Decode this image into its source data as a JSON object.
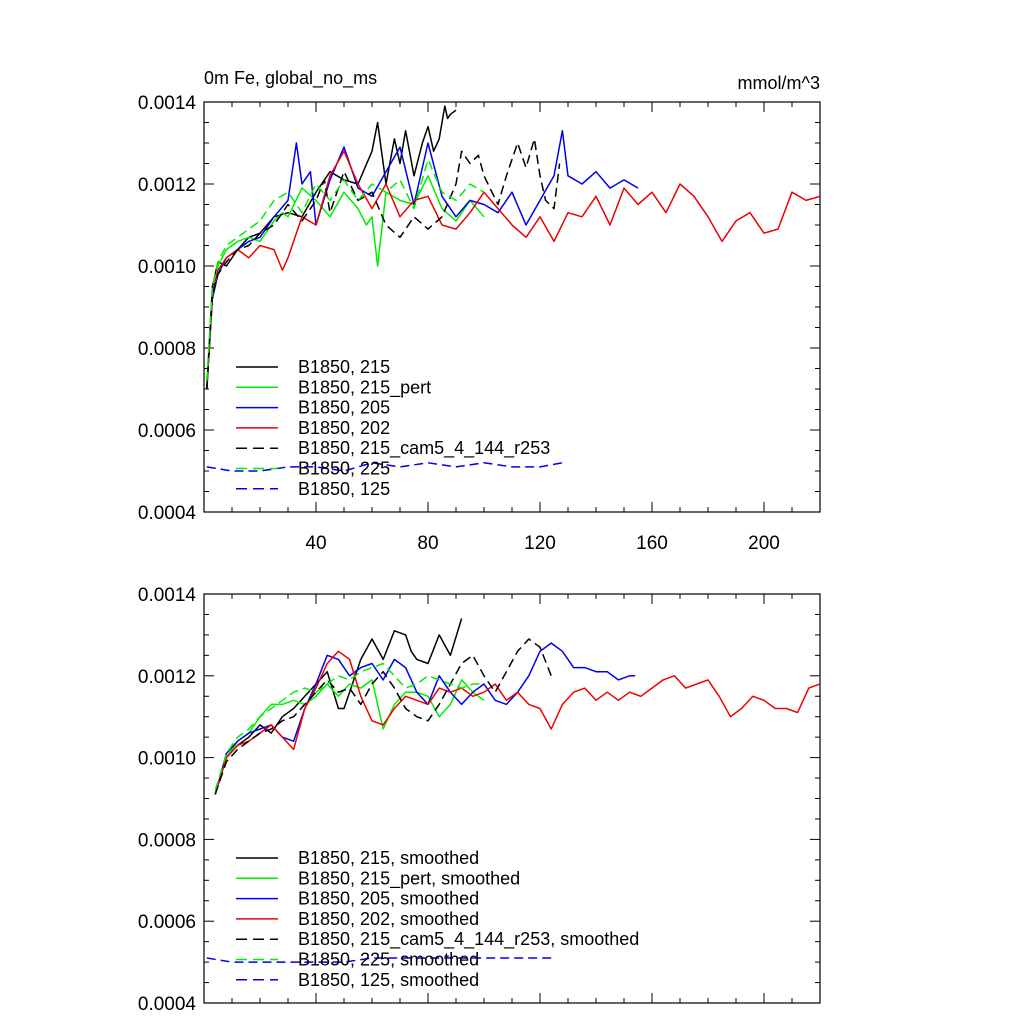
{
  "chart_data": [
    {
      "type": "line",
      "title": "0m Fe, global_no_ms",
      "units": "mmol/m^3",
      "xlim": [
        0,
        220
      ],
      "ylim": [
        0.0004,
        0.0014
      ],
      "yticks": [
        "0.0004",
        "0.0006",
        "0.0008",
        "0.0010",
        "0.0012",
        "0.0014"
      ],
      "xticks": [
        "40",
        "80",
        "120",
        "160",
        "200"
      ],
      "grid": false,
      "legend_placement": "bottom-left",
      "series": [
        {
          "name": "B1850, 215",
          "color": "#000000",
          "dash": "solid",
          "x": [
            1,
            3,
            5,
            8,
            12,
            16,
            20,
            25,
            30,
            35,
            40,
            45,
            50,
            55,
            60,
            62,
            65,
            68,
            70,
            72,
            75,
            78,
            80,
            82,
            84,
            86,
            87,
            88,
            90
          ],
          "y": [
            0.0007,
            0.00095,
            0.00101,
            0.001,
            0.00104,
            0.00107,
            0.00108,
            0.00112,
            0.00113,
            0.00112,
            0.00118,
            0.00123,
            0.00121,
            0.0012,
            0.00128,
            0.00135,
            0.0012,
            0.00131,
            0.00125,
            0.00133,
            0.00122,
            0.0013,
            0.00134,
            0.00128,
            0.00131,
            0.00139,
            0.00136,
            0.00137,
            0.00138
          ]
        },
        {
          "name": "B1850, 215_pert",
          "color": "#00ee00",
          "dash": "solid",
          "x": [
            1,
            3,
            5,
            8,
            12,
            16,
            20,
            25,
            28,
            30,
            35,
            40,
            45,
            50,
            55,
            58,
            60,
            62,
            65,
            70,
            75,
            80,
            85,
            90,
            95,
            100
          ],
          "y": [
            0.0007,
            0.00093,
            0.001,
            0.00104,
            0.00106,
            0.00107,
            0.00106,
            0.00111,
            0.00113,
            0.00112,
            0.00119,
            0.00116,
            0.00112,
            0.00118,
            0.00114,
            0.0011,
            0.00112,
            0.001,
            0.00118,
            0.00116,
            0.00115,
            0.00122,
            0.00114,
            0.00111,
            0.00116,
            0.00112
          ]
        },
        {
          "name": "B1850, 205",
          "color": "#0000ee",
          "dash": "solid",
          "x": [
            1,
            3,
            5,
            8,
            12,
            16,
            20,
            25,
            30,
            33,
            35,
            38,
            40,
            45,
            50,
            55,
            60,
            65,
            70,
            75,
            80,
            85,
            90,
            95,
            100,
            105,
            110,
            115,
            120,
            125,
            128,
            130,
            135,
            140,
            145,
            150,
            155
          ],
          "y": [
            0.0007,
            0.00092,
            0.00098,
            0.00102,
            0.00104,
            0.00106,
            0.00107,
            0.00112,
            0.00116,
            0.0013,
            0.0012,
            0.00123,
            0.0011,
            0.00121,
            0.00129,
            0.00119,
            0.00117,
            0.00123,
            0.00129,
            0.00115,
            0.0013,
            0.00117,
            0.00112,
            0.00116,
            0.00115,
            0.00113,
            0.00118,
            0.0011,
            0.00116,
            0.00122,
            0.00133,
            0.00122,
            0.0012,
            0.00123,
            0.00119,
            0.00121,
            0.00119
          ]
        },
        {
          "name": "B1850, 202",
          "color": "#ee0000",
          "dash": "solid",
          "x": [
            1,
            3,
            5,
            8,
            12,
            16,
            20,
            25,
            28,
            30,
            35,
            40,
            45,
            50,
            55,
            60,
            65,
            70,
            75,
            80,
            85,
            90,
            95,
            100,
            105,
            110,
            115,
            120,
            125,
            130,
            135,
            140,
            145,
            150,
            155,
            160,
            165,
            170,
            175,
            180,
            185,
            190,
            195,
            200,
            205,
            210,
            215,
            220
          ],
          "y": [
            0.0007,
            0.00093,
            0.00099,
            0.00102,
            0.00104,
            0.00102,
            0.00105,
            0.00104,
            0.00099,
            0.00102,
            0.00112,
            0.0011,
            0.00122,
            0.00128,
            0.0012,
            0.00114,
            0.0012,
            0.00112,
            0.00116,
            0.00117,
            0.0011,
            0.00109,
            0.00113,
            0.00118,
            0.00114,
            0.0011,
            0.00107,
            0.00112,
            0.00106,
            0.00113,
            0.00112,
            0.00117,
            0.0011,
            0.00119,
            0.00115,
            0.00118,
            0.00113,
            0.0012,
            0.00117,
            0.00112,
            0.00106,
            0.00111,
            0.00113,
            0.00108,
            0.00109,
            0.00118,
            0.00116,
            0.00117
          ]
        },
        {
          "name": "B1850, 215_cam5_4_144_r253",
          "color": "#000000",
          "dash": "dashed",
          "x": [
            1,
            3,
            5,
            8,
            12,
            16,
            20,
            25,
            30,
            35,
            40,
            43,
            45,
            50,
            55,
            60,
            65,
            70,
            75,
            80,
            85,
            90,
            92,
            95,
            98,
            100,
            105,
            108,
            110,
            112,
            115,
            118,
            120,
            122,
            125,
            127
          ],
          "y": [
            0.0007,
            0.00093,
            0.00098,
            0.00101,
            0.00104,
            0.00105,
            0.00108,
            0.0011,
            0.00115,
            0.00111,
            0.00116,
            0.00121,
            0.00113,
            0.00123,
            0.00116,
            0.00118,
            0.0011,
            0.00107,
            0.00112,
            0.00109,
            0.00112,
            0.0012,
            0.00128,
            0.00125,
            0.00127,
            0.00122,
            0.00115,
            0.00122,
            0.00126,
            0.0013,
            0.00124,
            0.00131,
            0.00122,
            0.00116,
            0.00114,
            0.00125
          ]
        },
        {
          "name": "B1850, 225",
          "color": "#00ee00",
          "dash": "dashed",
          "x": [
            1,
            3,
            5,
            8,
            12,
            16,
            20,
            25,
            30,
            35,
            40,
            45,
            50,
            55,
            60,
            65,
            70,
            75,
            80,
            85,
            90,
            95,
            100
          ],
          "y": [
            0.00072,
            0.00095,
            0.00101,
            0.00105,
            0.00107,
            0.00109,
            0.00111,
            0.00116,
            0.00118,
            0.00113,
            0.0012,
            0.00116,
            0.00121,
            0.00116,
            0.0012,
            0.00118,
            0.00121,
            0.00114,
            0.00126,
            0.00118,
            0.00116,
            0.0012,
            0.00118
          ]
        },
        {
          "name": "B1850, 125",
          "color": "#0000ee",
          "dash": "dashed",
          "x": [
            1,
            10,
            20,
            30,
            40,
            50,
            60,
            70,
            80,
            90,
            100,
            110,
            120,
            128
          ],
          "y": [
            0.00051,
            0.0005,
            0.0005,
            0.00051,
            0.00051,
            0.0005,
            0.00052,
            0.00051,
            0.00052,
            0.00051,
            0.00052,
            0.00051,
            0.00051,
            0.00052
          ]
        }
      ]
    },
    {
      "type": "line",
      "title": "",
      "units": "",
      "xlim": [
        0,
        220
      ],
      "ylim": [
        0.0004,
        0.0014
      ],
      "yticks": [
        "0.0004",
        "0.0006",
        "0.0008",
        "0.0010",
        "0.0012",
        "0.0014"
      ],
      "xticks": [],
      "grid": false,
      "legend_placement": "bottom-left",
      "series": [
        {
          "name": "B1850, 215, smoothed",
          "color": "#000000",
          "dash": "solid",
          "x": [
            4,
            8,
            12,
            16,
            20,
            24,
            28,
            32,
            36,
            40,
            44,
            48,
            50,
            52,
            56,
            60,
            64,
            68,
            72,
            74,
            76,
            80,
            84,
            88,
            92
          ],
          "y": [
            0.00091,
            0.001,
            0.00103,
            0.00105,
            0.00108,
            0.00106,
            0.0011,
            0.00112,
            0.00115,
            0.00118,
            0.00121,
            0.00112,
            0.00112,
            0.00116,
            0.00124,
            0.00129,
            0.00124,
            0.00131,
            0.0013,
            0.00126,
            0.00124,
            0.00123,
            0.0013,
            0.00125,
            0.00134
          ]
        },
        {
          "name": "B1850, 215_pert, smoothed",
          "color": "#00ee00",
          "dash": "solid",
          "x": [
            4,
            8,
            12,
            16,
            20,
            24,
            28,
            32,
            36,
            40,
            44,
            48,
            52,
            56,
            60,
            64,
            68,
            72,
            76,
            80,
            84,
            88,
            92,
            96,
            100
          ],
          "y": [
            0.00091,
            0.001,
            0.00104,
            0.00106,
            0.0011,
            0.00113,
            0.00113,
            0.00114,
            0.00113,
            0.00115,
            0.00118,
            0.00115,
            0.00118,
            0.00117,
            0.00119,
            0.00107,
            0.00113,
            0.00116,
            0.00116,
            0.00115,
            0.0011,
            0.00113,
            0.00119,
            0.00116,
            0.00114
          ]
        },
        {
          "name": "B1850, 205, smoothed",
          "color": "#0000ee",
          "dash": "solid",
          "x": [
            4,
            8,
            12,
            16,
            20,
            24,
            28,
            32,
            36,
            40,
            44,
            48,
            52,
            56,
            60,
            64,
            68,
            72,
            76,
            80,
            84,
            88,
            92,
            96,
            100,
            104,
            108,
            112,
            116,
            120,
            124,
            128,
            132,
            136,
            140,
            144,
            148,
            152,
            154
          ],
          "y": [
            0.00091,
            0.00101,
            0.00104,
            0.00106,
            0.00107,
            0.00108,
            0.00105,
            0.00104,
            0.00112,
            0.00118,
            0.00125,
            0.00124,
            0.0012,
            0.00122,
            0.00123,
            0.00119,
            0.00124,
            0.00122,
            0.00116,
            0.00113,
            0.0012,
            0.00116,
            0.00113,
            0.00116,
            0.00118,
            0.00114,
            0.00113,
            0.00116,
            0.0012,
            0.00126,
            0.00128,
            0.00126,
            0.00122,
            0.00122,
            0.00121,
            0.00121,
            0.00119,
            0.0012,
            0.0012
          ]
        },
        {
          "name": "B1850, 202, smoothed",
          "color": "#ee0000",
          "dash": "solid",
          "x": [
            4,
            8,
            12,
            16,
            20,
            24,
            28,
            32,
            36,
            40,
            44,
            48,
            52,
            56,
            60,
            64,
            68,
            72,
            76,
            80,
            84,
            88,
            92,
            96,
            100,
            104,
            108,
            112,
            116,
            120,
            124,
            128,
            132,
            136,
            140,
            144,
            148,
            152,
            156,
            160,
            164,
            168,
            172,
            176,
            180,
            184,
            188,
            192,
            196,
            200,
            204,
            208,
            212,
            216,
            220
          ],
          "y": [
            0.00091,
            0.001,
            0.00103,
            0.00104,
            0.00106,
            0.00108,
            0.00105,
            0.00102,
            0.00112,
            0.00117,
            0.00123,
            0.00126,
            0.00124,
            0.00115,
            0.00109,
            0.00108,
            0.00112,
            0.00115,
            0.00114,
            0.00113,
            0.00117,
            0.00116,
            0.00117,
            0.00115,
            0.00116,
            0.00118,
            0.00114,
            0.00116,
            0.00113,
            0.00112,
            0.00107,
            0.00113,
            0.00116,
            0.00117,
            0.00114,
            0.00116,
            0.00114,
            0.00116,
            0.00115,
            0.00117,
            0.00119,
            0.0012,
            0.00117,
            0.00118,
            0.00119,
            0.00115,
            0.0011,
            0.00112,
            0.00115,
            0.00114,
            0.00112,
            0.00112,
            0.00111,
            0.00117,
            0.00118
          ]
        },
        {
          "name": "B1850, 215_cam5_4_144_r253, smoothed",
          "color": "#000000",
          "dash": "dashed",
          "x": [
            4,
            8,
            12,
            16,
            20,
            24,
            28,
            32,
            36,
            40,
            44,
            48,
            52,
            56,
            60,
            64,
            68,
            72,
            76,
            80,
            84,
            88,
            92,
            96,
            100,
            104,
            108,
            112,
            116,
            120,
            124
          ],
          "y": [
            0.00091,
            0.00099,
            0.00102,
            0.00104,
            0.00106,
            0.00107,
            0.00109,
            0.0011,
            0.00113,
            0.00116,
            0.00119,
            0.00116,
            0.00117,
            0.00113,
            0.00118,
            0.00121,
            0.00117,
            0.00112,
            0.0011,
            0.00109,
            0.00113,
            0.00118,
            0.00123,
            0.00125,
            0.0012,
            0.00116,
            0.00121,
            0.00126,
            0.00129,
            0.00127,
            0.0012
          ]
        },
        {
          "name": "B1850, 225, smoothed",
          "color": "#00ee00",
          "dash": "dashed",
          "x": [
            4,
            8,
            12,
            16,
            20,
            24,
            28,
            32,
            36,
            40,
            44,
            48,
            52,
            56,
            60,
            64,
            68,
            72,
            76,
            80,
            84,
            88,
            92,
            96,
            100
          ],
          "y": [
            0.00092,
            0.00101,
            0.00105,
            0.00107,
            0.0011,
            0.00112,
            0.00114,
            0.00116,
            0.00117,
            0.00116,
            0.00118,
            0.0012,
            0.00119,
            0.00121,
            0.00122,
            0.00123,
            0.0012,
            0.00117,
            0.00118,
            0.0012,
            0.00119,
            0.00118,
            0.00117,
            0.00118,
            0.00118
          ]
        },
        {
          "name": "B1850, 125, smoothed",
          "color": "#0000ee",
          "dash": "dashed",
          "x": [
            1,
            10,
            20,
            30,
            40,
            50,
            60,
            70,
            80,
            90,
            100,
            110,
            120,
            124
          ],
          "y": [
            0.00051,
            0.0005,
            0.0005,
            0.0005,
            0.0005,
            0.0005,
            0.00051,
            0.00051,
            0.00051,
            0.00051,
            0.00051,
            0.00051,
            0.00051,
            0.00051
          ]
        }
      ]
    }
  ]
}
